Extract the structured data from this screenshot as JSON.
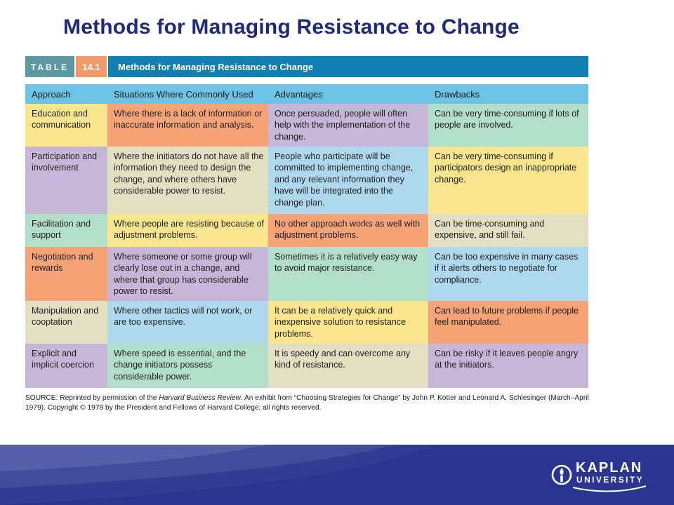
{
  "slide": {
    "title": "Methods for Managing Resistance to Change"
  },
  "table": {
    "label": "TABLE",
    "number": "14.1",
    "title": "Methods for Managing Resistance to Change",
    "headers": [
      "Approach",
      "Situations Where Commonly Used",
      "Advantages",
      "Drawbacks"
    ],
    "rows": [
      {
        "approach": "Education and communication",
        "situations": "Where there is a lack of information or inaccurate information and analysis.",
        "advantages": "Once persuaded, people will often help with the implementation of the change.",
        "drawbacks": "Can be very time-consuming if lots of people are involved."
      },
      {
        "approach": "Participation and involvement",
        "situations": "Where the initiators do not have all the information they need to design the change, and where others have considerable power to resist.",
        "advantages": "People who participate will be committed to implementing change, and any relevant information they have will be integrated into the change plan.",
        "drawbacks": "Can be very time-consuming if participators design an inappropriate change."
      },
      {
        "approach": "Facilitation and support",
        "situations": "Where people are resisting because of adjustment problems.",
        "advantages": "No other approach works as well with adjustment problems.",
        "drawbacks": "Can be time-consuming and expensive, and still fail."
      },
      {
        "approach": "Negotiation and rewards",
        "situations": "Where someone or some group will clearly lose out in a change, and where that group has considerable power to resist.",
        "advantages": "Sometimes it is a relatively easy way to avoid major resistance.",
        "drawbacks": "Can be too expensive in many cases if it alerts others to negotiate for compliance."
      },
      {
        "approach": "Manipulation and cooptation",
        "situations": "Where other tactics will not work, or are too expensive.",
        "advantages": "It can be a relatively quick and inexpensive solution to resistance problems.",
        "drawbacks": "Can lead to future problems if people feel manipulated."
      },
      {
        "approach": "Explicit and implicit coercion",
        "situations": "Where speed is essential, and the change initiators possess considerable power.",
        "advantages": "It is speedy and can overcome any kind of resistance.",
        "drawbacks": "Can be risky if it leaves people angry at the initiators."
      }
    ],
    "source": {
      "prefix": "SOURCE: Reprinted by permission of the ",
      "journal": "Harvard Business Review",
      "suffix": ". An exhibit from “Choosing Strategies for Change” by John P. Kotter and Leonard A. Schlesinger (March–April 1979). Copyright © 1979 by the President and Fellows of Harvard College; all rights reserved."
    }
  },
  "footer": {
    "logo_line1": "KAPLAN",
    "logo_line2": "UNIVERSITY",
    "logo_icon": "kaplan-torch-icon"
  },
  "colors": {
    "title": "#1f2a7a",
    "footer": "#2a3590",
    "header_row": "#6cc3e6",
    "yellow": "#fbe68d",
    "orange": "#f6a378",
    "purple": "#c7b6d8",
    "green": "#b2dfca",
    "blue": "#aed8ee",
    "tan": "#e3dfc2"
  }
}
